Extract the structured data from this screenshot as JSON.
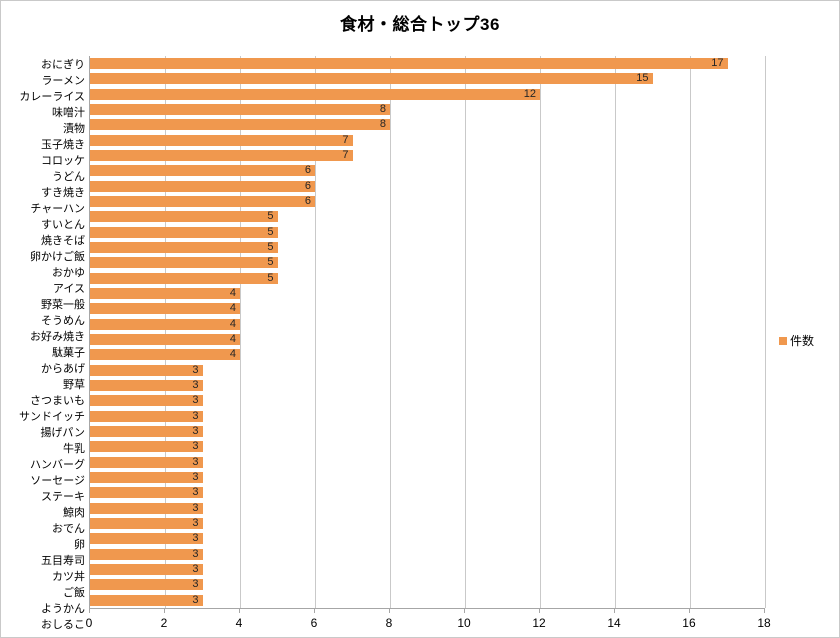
{
  "chart_data": {
    "type": "bar",
    "orientation": "horizontal",
    "title": "食材・総合トップ36",
    "legend_entries": [
      "件数"
    ],
    "legend_position": "right",
    "grid": "vertical-only",
    "categories": [
      "おにぎり",
      "ラーメン",
      "カレーライス",
      "味噌汁",
      "漬物",
      "玉子焼き",
      "コロッケ",
      "うどん",
      "すき焼き",
      "チャーハン",
      "すいとん",
      "焼きそば",
      "卵かけご飯",
      "おかゆ",
      "アイス",
      "野菜一般",
      "そうめん",
      "お好み焼き",
      "駄菓子",
      "からあげ",
      "野草",
      "さつまいも",
      "サンドイッチ",
      "揚げパン",
      "牛乳",
      "ハンバーグ",
      "ソーセージ",
      "ステーキ",
      "鯨肉",
      "おでん",
      "卵",
      "五目寿司",
      "カツ丼",
      "ご飯",
      "ようかん",
      "おしるこ"
    ],
    "values": [
      17,
      15,
      12,
      8,
      8,
      7,
      7,
      6,
      6,
      6,
      5,
      5,
      5,
      5,
      5,
      4,
      4,
      4,
      4,
      4,
      3,
      3,
      3,
      3,
      3,
      3,
      3,
      3,
      3,
      3,
      3,
      3,
      3,
      3,
      3,
      3
    ],
    "xlabel": "",
    "ylabel": "",
    "xlim": [
      0,
      18
    ],
    "xticks": [
      0,
      2,
      4,
      6,
      8,
      10,
      12,
      14,
      16,
      18
    ],
    "colors": {
      "bar": "#f0984e",
      "gridline": "#c9c9c9",
      "axis": "#a6a6a6",
      "value_label": "#262626",
      "category_label": "#000000",
      "title": "#000000",
      "background": "#ffffff"
    }
  }
}
